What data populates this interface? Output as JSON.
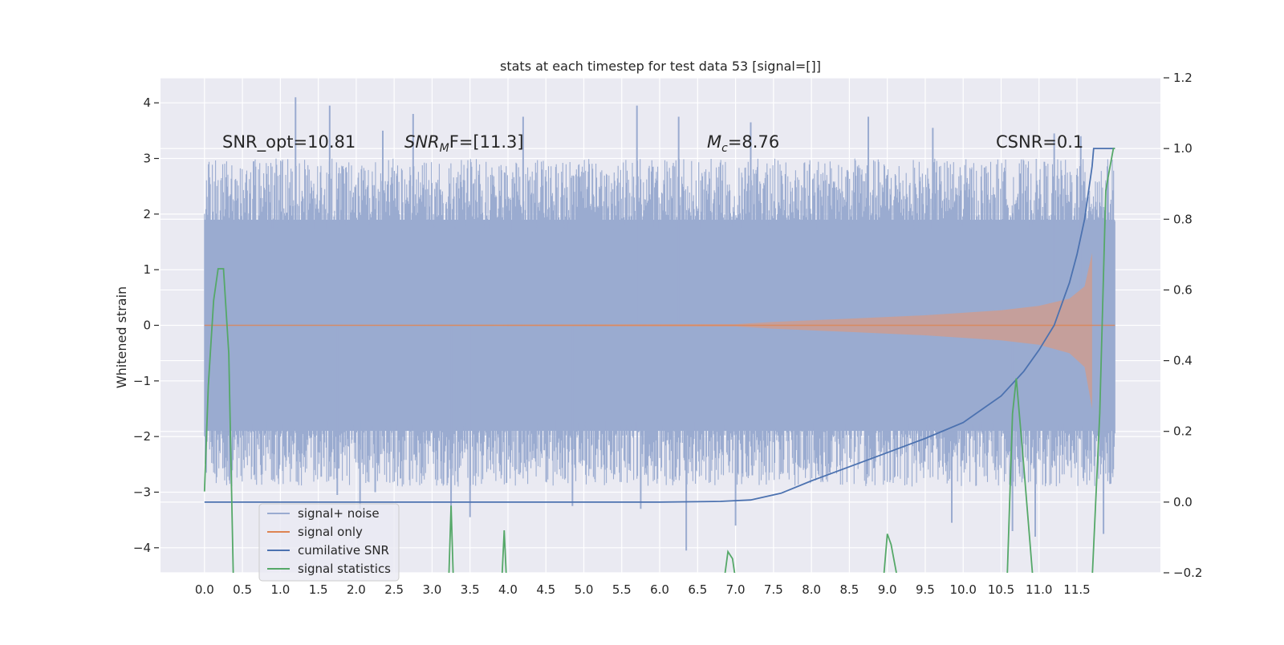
{
  "chart_data": {
    "type": "line",
    "title": "stats at each timestep for test data 53 [signal=[]]",
    "ylabel": "Whitened strain",
    "xlabel": "",
    "xlim": [
      -0.58,
      12.6
    ],
    "ylim": [
      -4.45,
      4.45
    ],
    "y2lim": [
      -0.2,
      1.2
    ],
    "grid": true,
    "background": "#eaeaf2",
    "x_ticks": [
      "0.0",
      "0.5",
      "1.0",
      "1.5",
      "2.0",
      "2.5",
      "3.0",
      "3.5",
      "4.0",
      "4.5",
      "5.0",
      "5.5",
      "6.0",
      "6.5",
      "7.0",
      "7.5",
      "8.0",
      "8.5",
      "9.0",
      "9.5",
      "10.0",
      "10.5",
      "11.0",
      "11.5"
    ],
    "y_ticks": [
      "4",
      "3",
      "2",
      "1",
      "0",
      "−1",
      "−2",
      "−3",
      "−4"
    ],
    "y2_ticks": [
      "1.2",
      "1.0",
      "0.8",
      "0.6",
      "0.4",
      "0.2",
      "0.0",
      "−0.2"
    ],
    "annotations": [
      {
        "name": "snr-opt",
        "text": "SNR_opt=10.81"
      },
      {
        "name": "snr-mf",
        "text_main": "SNR",
        "text_sub": "M",
        "text_tail": "F=[11.3]"
      },
      {
        "name": "chirp-mass",
        "text_main": "M",
        "text_sub": "c",
        "text_tail": "=8.76"
      },
      {
        "name": "csnr",
        "text": "CSNR=0.1"
      }
    ],
    "legend": {
      "position": "lower-left",
      "entries": [
        {
          "label": "signal+ noise",
          "color": "#9aabd0"
        },
        {
          "label": "signal only",
          "color": "#dd8452"
        },
        {
          "label": "cumilative SNR",
          "color": "#4c72b0"
        },
        {
          "label": "signal statistics",
          "color": "#55a868"
        }
      ]
    },
    "series": [
      {
        "name": "signal+ noise",
        "axis": "left",
        "color": "#4c72b0",
        "style": "noise",
        "x_range": [
          0.0,
          12.0
        ],
        "envelope": {
          "x": [
            0.0,
            12.0
          ],
          "y_low": [
            -1.9,
            -1.9
          ],
          "y_high": [
            1.9,
            1.9
          ]
        },
        "spikes": [
          [
            1.2,
            4.1
          ],
          [
            1.65,
            3.95
          ],
          [
            2.35,
            3.5
          ],
          [
            2.75,
            3.8
          ],
          [
            4.2,
            3.75
          ],
          [
            5.7,
            3.95
          ],
          [
            6.25,
            3.75
          ],
          [
            7.2,
            3.65
          ],
          [
            8.75,
            3.75
          ],
          [
            9.6,
            3.55
          ],
          [
            11.2,
            3.45
          ],
          [
            11.55,
            3.4
          ],
          [
            1.75,
            -3.05
          ],
          [
            2.05,
            -3.3
          ],
          [
            2.25,
            -3.0
          ],
          [
            3.25,
            -3.3
          ],
          [
            3.5,
            -3.45
          ],
          [
            4.85,
            -3.25
          ],
          [
            5.75,
            -3.3
          ],
          [
            6.35,
            -4.05
          ],
          [
            7.0,
            -3.6
          ],
          [
            9.85,
            -3.55
          ],
          [
            10.65,
            -3.7
          ],
          [
            10.95,
            -3.8
          ],
          [
            11.85,
            -3.75
          ]
        ]
      },
      {
        "name": "signal only",
        "axis": "left",
        "color": "#dd8452",
        "style": "chirp",
        "points": [
          [
            0.0,
            0.0
          ],
          [
            7.0,
            0.02
          ],
          [
            7.5,
            0.06
          ],
          [
            8.5,
            0.12
          ],
          [
            9.5,
            0.18
          ],
          [
            10.5,
            0.27
          ],
          [
            11.0,
            0.35
          ],
          [
            11.4,
            0.48
          ],
          [
            11.6,
            0.7
          ],
          [
            11.7,
            1.3
          ]
        ],
        "points_low": [
          [
            0.0,
            0.0
          ],
          [
            7.0,
            -0.02
          ],
          [
            7.5,
            -0.06
          ],
          [
            8.5,
            -0.12
          ],
          [
            9.5,
            -0.18
          ],
          [
            10.5,
            -0.27
          ],
          [
            11.0,
            -0.35
          ],
          [
            11.4,
            -0.5
          ],
          [
            11.6,
            -0.75
          ],
          [
            11.7,
            -1.5
          ]
        ],
        "end_x": 12.0
      },
      {
        "name": "cumilative SNR",
        "axis": "right",
        "color": "#4c72b0",
        "points": [
          [
            0.0,
            0.0
          ],
          [
            6.0,
            0.0
          ],
          [
            6.8,
            0.002
          ],
          [
            7.2,
            0.006
          ],
          [
            7.6,
            0.025
          ],
          [
            8.0,
            0.06
          ],
          [
            8.5,
            0.1
          ],
          [
            9.0,
            0.14
          ],
          [
            9.5,
            0.18
          ],
          [
            10.0,
            0.225
          ],
          [
            10.5,
            0.3
          ],
          [
            10.8,
            0.37
          ],
          [
            11.0,
            0.43
          ],
          [
            11.2,
            0.5
          ],
          [
            11.4,
            0.62
          ],
          [
            11.5,
            0.7
          ],
          [
            11.6,
            0.8
          ],
          [
            11.7,
            0.95
          ],
          [
            11.72,
            1.0
          ],
          [
            12.0,
            1.0
          ]
        ]
      },
      {
        "name": "signal statistics",
        "axis": "right",
        "color": "#55a868",
        "points": [
          [
            0.0,
            0.03
          ],
          [
            0.05,
            0.33
          ],
          [
            0.12,
            0.57
          ],
          [
            0.18,
            0.66
          ],
          [
            0.25,
            0.66
          ],
          [
            0.32,
            0.42
          ],
          [
            0.38,
            -0.22
          ]
        ],
        "segments": [
          [
            [
              3.22,
              -0.22
            ],
            [
              3.25,
              -0.01
            ],
            [
              3.28,
              -0.22
            ]
          ],
          [
            [
              3.92,
              -0.22
            ],
            [
              3.95,
              -0.08
            ],
            [
              3.98,
              -0.22
            ]
          ],
          [
            [
              6.85,
              -0.22
            ],
            [
              6.9,
              -0.14
            ],
            [
              6.96,
              -0.16
            ],
            [
              7.0,
              -0.22
            ]
          ],
          [
            [
              8.95,
              -0.22
            ],
            [
              9.0,
              -0.09
            ],
            [
              9.05,
              -0.12
            ],
            [
              9.12,
              -0.2
            ]
          ],
          [
            [
              10.58,
              -0.22
            ],
            [
              10.65,
              0.25
            ],
            [
              10.7,
              0.35
            ],
            [
              10.8,
              0.1
            ],
            [
              10.92,
              -0.22
            ]
          ],
          [
            [
              11.7,
              -0.22
            ],
            [
              11.8,
              0.25
            ],
            [
              11.88,
              0.88
            ],
            [
              11.92,
              0.93
            ],
            [
              11.98,
              1.0
            ],
            [
              12.0,
              1.0
            ]
          ]
        ]
      }
    ]
  }
}
